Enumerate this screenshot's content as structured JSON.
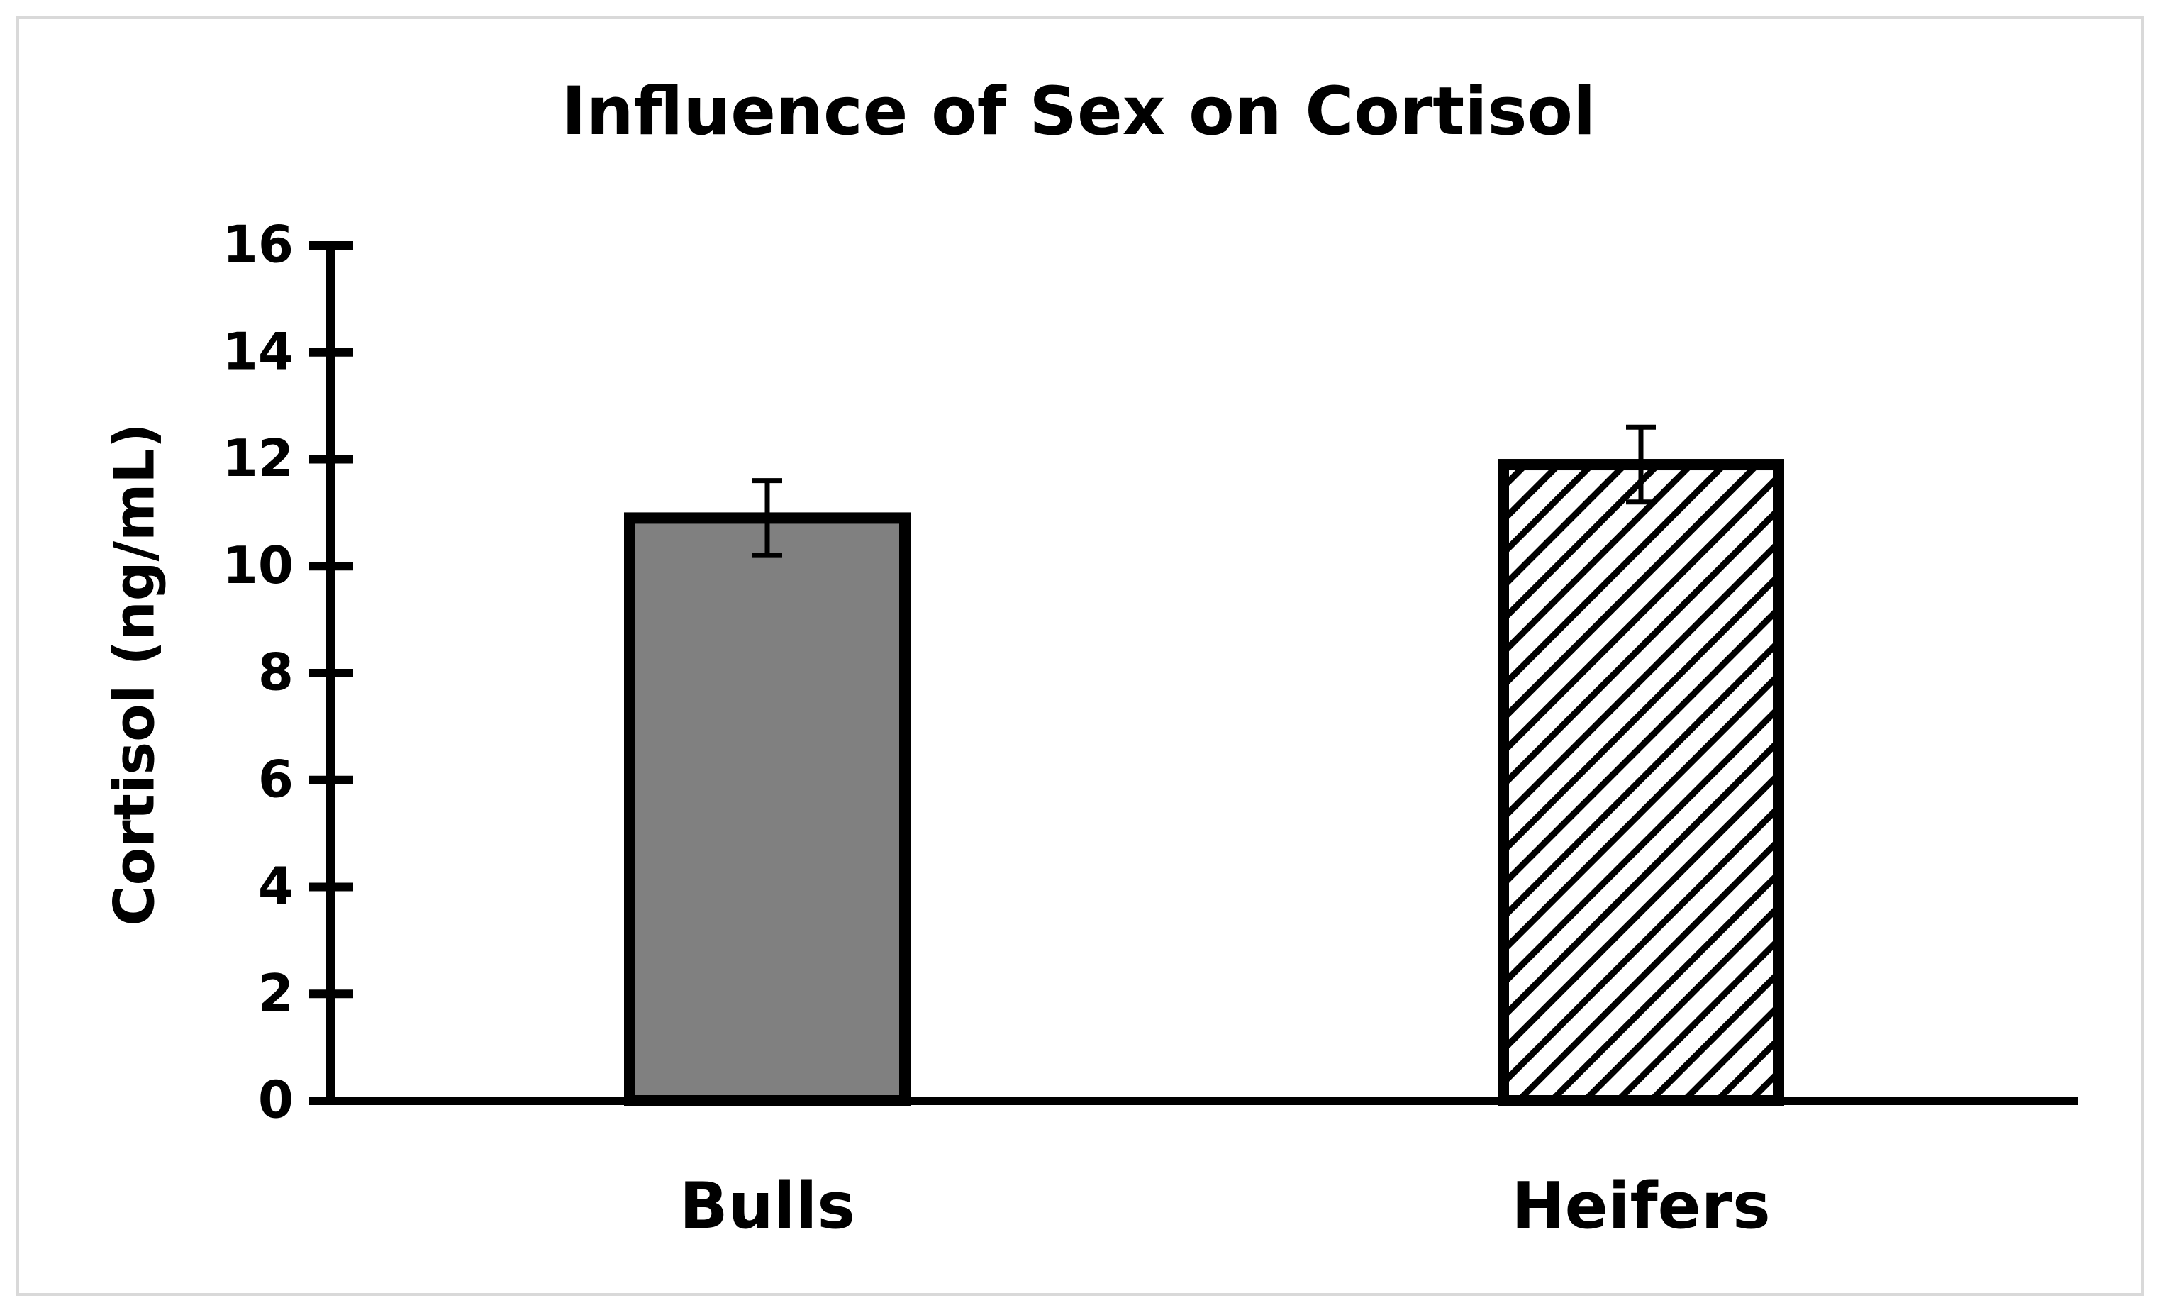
{
  "chart_data": {
    "type": "bar",
    "title": "Influence of Sex on Cortisol",
    "y_label": "Cortisol (ng/mL)",
    "categories": [
      "Bulls",
      "Heifers"
    ],
    "values": [
      10.9,
      11.9
    ],
    "errors": [
      0.7,
      0.7
    ],
    "colors": [
      "#808080",
      "#ffffff"
    ],
    "fills": [
      "solid",
      "hatch"
    ],
    "ylim": [
      0,
      16
    ],
    "yticks": [
      0,
      2,
      4,
      6,
      8,
      10,
      12,
      14,
      16
    ],
    "grid": false
  }
}
